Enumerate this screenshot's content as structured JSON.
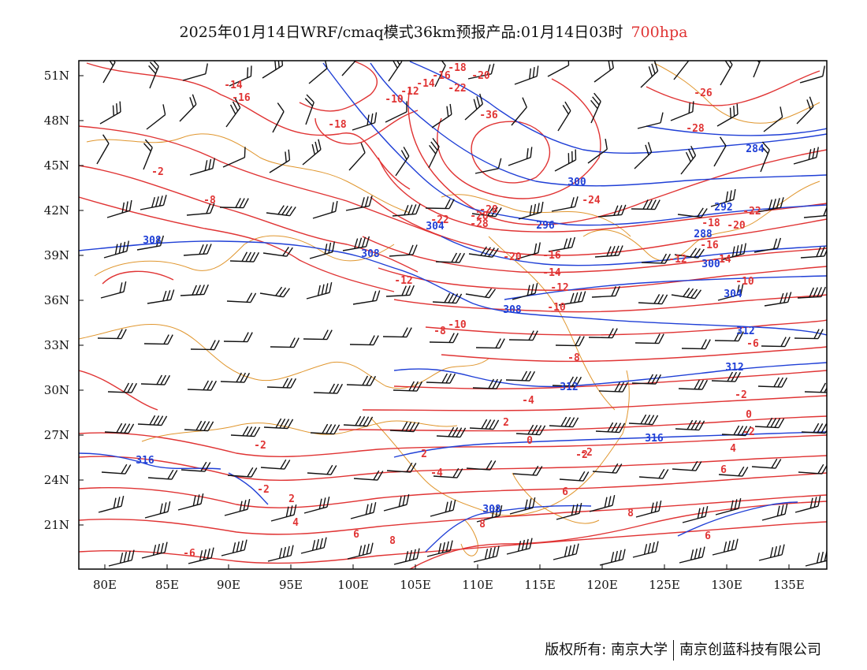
{
  "title": {
    "main": "2025年01月14日WRF/cmaq模式36km预报产品:01月14日03时",
    "level": "700hpa"
  },
  "colors": {
    "temperature": "#e03434",
    "geopotential": "#1f3fd6",
    "boundary": "#e0962e",
    "barb": "#111111",
    "frame": "#000000"
  },
  "axes": {
    "lat_labels": [
      "51N",
      "48N",
      "45N",
      "42N",
      "39N",
      "36N",
      "33N",
      "30N",
      "27N",
      "24N",
      "21N"
    ],
    "lon_labels": [
      "80E",
      "85E",
      "90E",
      "95E",
      "100E",
      "105E",
      "110E",
      "115E",
      "120E",
      "125E",
      "130E",
      "135E"
    ]
  },
  "temperature_labels": [
    "-14",
    "-16",
    "-18",
    "-26",
    "-28",
    "-36",
    "-28",
    "-8",
    "-24",
    "-22",
    "-28",
    "-28",
    "-22",
    "-20",
    "-18",
    "-16",
    "-14",
    "-12",
    "-10",
    "-20",
    "-16",
    "-14",
    "-12",
    "-10",
    "-12",
    "-22",
    "-20",
    "-18",
    "-16",
    "-14",
    "-12",
    "-10",
    "-8",
    "-8",
    "-6",
    "-10",
    "-4",
    "-2",
    "-2",
    "0",
    "-2",
    "2",
    "-4",
    "-2",
    "0",
    "2",
    "4",
    "6",
    "-2",
    "2",
    "4",
    "6",
    "8",
    "8",
    "6",
    "8",
    "6",
    "-6",
    "-2",
    "-2"
  ],
  "geopotential_labels": [
    "308",
    "304",
    "300",
    "296",
    "292",
    "288",
    "284",
    "300",
    "304",
    "308",
    "308",
    "312",
    "312",
    "312",
    "316",
    "316",
    "308"
  ],
  "footer": {
    "left": "版权所有: 南京大学",
    "right": "南京创蓝科技有限公司"
  }
}
